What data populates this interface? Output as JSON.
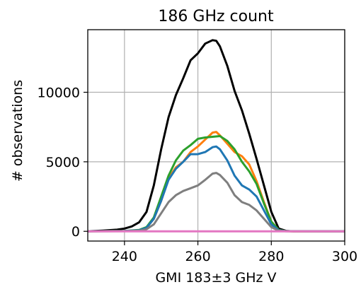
{
  "chart_data": {
    "type": "line",
    "title": "186 GHz count",
    "xlabel": "GMI 183±3 GHz V",
    "ylabel": "# observations",
    "xlim": [
      230,
      300
    ],
    "ylim": [
      -700,
      14500
    ],
    "xticks": [
      240,
      260,
      280,
      300
    ],
    "yticks": [
      0,
      5000,
      10000
    ],
    "grid": true,
    "legend": "none",
    "series": [
      {
        "color": "#000000",
        "x": [
          230,
          234,
          238,
          240,
          242,
          244,
          246,
          248,
          250,
          252,
          254,
          256,
          258,
          260,
          262,
          264,
          265,
          266,
          268,
          270,
          272,
          274,
          276,
          278,
          280,
          282,
          284,
          286,
          290,
          300
        ],
        "y": [
          0,
          50,
          120,
          200,
          350,
          650,
          1400,
          3300,
          5900,
          8200,
          9800,
          11000,
          12300,
          12800,
          13500,
          13750,
          13700,
          13300,
          11900,
          10100,
          8700,
          7000,
          5200,
          3300,
          1400,
          200,
          30,
          0,
          0,
          0
        ]
      },
      {
        "color": "#ff7f0e",
        "x": [
          230,
          240,
          244,
          246,
          248,
          250,
          252,
          254,
          256,
          258,
          260,
          262,
          264,
          265,
          266,
          268,
          270,
          272,
          274,
          276,
          278,
          280,
          282,
          284,
          286,
          300
        ],
        "y": [
          0,
          20,
          80,
          250,
          900,
          2200,
          3800,
          4600,
          5000,
          5700,
          6100,
          6600,
          7100,
          7150,
          6900,
          6300,
          5700,
          5400,
          4800,
          3600,
          2100,
          700,
          100,
          10,
          0,
          0
        ]
      },
      {
        "color": "#2ca02c",
        "x": [
          230,
          240,
          244,
          246,
          248,
          250,
          252,
          254,
          256,
          258,
          260,
          262,
          264,
          266,
          268,
          270,
          272,
          274,
          276,
          278,
          280,
          282,
          284,
          300
        ],
        "y": [
          0,
          20,
          100,
          300,
          1000,
          2500,
          4000,
          5100,
          5800,
          6200,
          6650,
          6750,
          6800,
          6850,
          6500,
          5900,
          5000,
          4300,
          3400,
          2000,
          700,
          100,
          10,
          0
        ]
      },
      {
        "color": "#1f77b4",
        "x": [
          230,
          240,
          244,
          246,
          248,
          250,
          252,
          254,
          256,
          258,
          260,
          262,
          264,
          265,
          266,
          268,
          270,
          272,
          274,
          276,
          278,
          280,
          282,
          284,
          300
        ],
        "y": [
          0,
          20,
          80,
          250,
          900,
          2200,
          3700,
          4500,
          5000,
          5550,
          5550,
          5700,
          6050,
          6100,
          5900,
          5100,
          4000,
          3300,
          3000,
          2500,
          1500,
          500,
          80,
          10,
          0
        ]
      },
      {
        "color": "#7f7f7f",
        "x": [
          230,
          240,
          244,
          246,
          248,
          250,
          252,
          254,
          256,
          258,
          260,
          262,
          264,
          265,
          266,
          268,
          270,
          272,
          274,
          276,
          278,
          280,
          282,
          284,
          300
        ],
        "y": [
          0,
          10,
          50,
          150,
          500,
          1300,
          2100,
          2600,
          2900,
          3100,
          3300,
          3700,
          4150,
          4200,
          4050,
          3500,
          2600,
          2100,
          1900,
          1500,
          900,
          300,
          40,
          5,
          0
        ]
      },
      {
        "color": "#e377c2",
        "x": [
          230,
          300
        ],
        "y": [
          0,
          0
        ]
      }
    ]
  }
}
